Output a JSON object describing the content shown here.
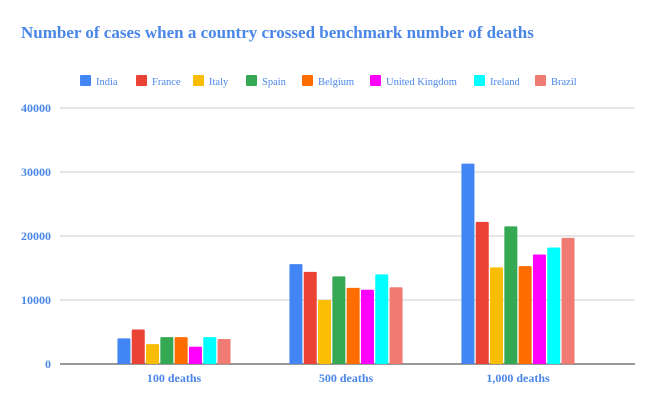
{
  "chart_data": {
    "type": "bar",
    "title": "Number of cases when a country crossed benchmark number of deaths",
    "xlabel": "",
    "ylabel": "",
    "categories": [
      "100 deaths",
      "500 deaths",
      "1,000 deaths"
    ],
    "ylim": [
      0,
      40000
    ],
    "yticks": [
      0,
      10000,
      20000,
      30000,
      40000
    ],
    "ytick_labels": [
      "0",
      "10000",
      "20000",
      "30000",
      "40000"
    ],
    "grid": true,
    "legend_position": "top",
    "series": [
      {
        "name": "India",
        "color": "#4285F4",
        "values": [
          4000,
          15600,
          31300
        ]
      },
      {
        "name": "France",
        "color": "#EA4335",
        "values": [
          5400,
          14400,
          22200
        ]
      },
      {
        "name": "Italy",
        "color": "#FBBC04",
        "values": [
          3100,
          10000,
          15100
        ]
      },
      {
        "name": "Spain",
        "color": "#34A853",
        "values": [
          4200,
          13700,
          21500
        ]
      },
      {
        "name": "Belgium",
        "color": "#FF6D01",
        "values": [
          4200,
          11900,
          15300
        ]
      },
      {
        "name": "United Kingdom",
        "color": "#FF00FF",
        "values": [
          2700,
          11600,
          17100
        ]
      },
      {
        "name": "Ireland",
        "color": "#00FFFF",
        "values": [
          4200,
          14000,
          18200
        ]
      },
      {
        "name": "Brazil",
        "color": "#F07B72",
        "values": [
          3900,
          12000,
          19700
        ]
      }
    ],
    "title_color": "#4A86E8",
    "label_color": "#4A86E8"
  }
}
